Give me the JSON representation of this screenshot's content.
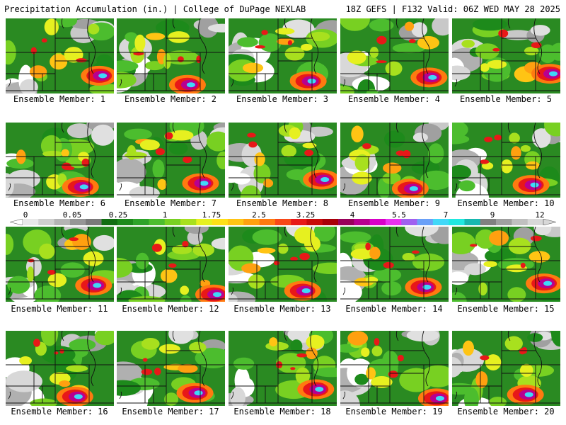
{
  "header": {
    "title": "Precipitation Accumulation (in.) | College of DuPage NEXLAB",
    "run_info": "18Z GEFS | F132 Valid: 06Z WED MAY 28 2025"
  },
  "panels": [
    {
      "label": "Ensemble Member: 1"
    },
    {
      "label": "Ensemble Member: 2"
    },
    {
      "label": "Ensemble Member: 3"
    },
    {
      "label": "Ensemble Member: 4"
    },
    {
      "label": "Ensemble Member: 5"
    },
    {
      "label": "Ensemble Member: 6"
    },
    {
      "label": "Ensemble Member: 7"
    },
    {
      "label": "Ensemble Member: 8"
    },
    {
      "label": "Ensemble Member: 9"
    },
    {
      "label": "Ensemble Member: 10"
    },
    {
      "label": "Ensemble Member: 11"
    },
    {
      "label": "Ensemble Member: 12"
    },
    {
      "label": "Ensemble Member: 13"
    },
    {
      "label": "Ensemble Member: 14"
    },
    {
      "label": "Ensemble Member: 15"
    },
    {
      "label": "Ensemble Member: 16"
    },
    {
      "label": "Ensemble Member: 17"
    },
    {
      "label": "Ensemble Member: 18"
    },
    {
      "label": "Ensemble Member: 19"
    },
    {
      "label": "Ensemble Member: 20"
    }
  ],
  "colorbar": {
    "labels": [
      "0",
      "0.05",
      "0.25",
      "1",
      "1.75",
      "2.5",
      "3.25",
      "4",
      "5.5",
      "7",
      "9",
      "12"
    ],
    "colors": [
      "#e8e8e8",
      "#cfcfcf",
      "#b4b4b4",
      "#969696",
      "#7a7a7a",
      "#116e12",
      "#1d8a1b",
      "#2ea32a",
      "#4cbd2e",
      "#78d022",
      "#a8e01e",
      "#e6f020",
      "#ffe018",
      "#ffc414",
      "#ffa010",
      "#ff7a10",
      "#f84818",
      "#e81818",
      "#c80a0a",
      "#a80008",
      "#98005a",
      "#b80090",
      "#d800c8",
      "#e830f0",
      "#a060f0",
      "#6aa0f8",
      "#40d8f8",
      "#20e8e0",
      "#18b8b0",
      "#808080",
      "#a0a0a0",
      "#c0c0c0",
      "#d8d8d8"
    ]
  }
}
